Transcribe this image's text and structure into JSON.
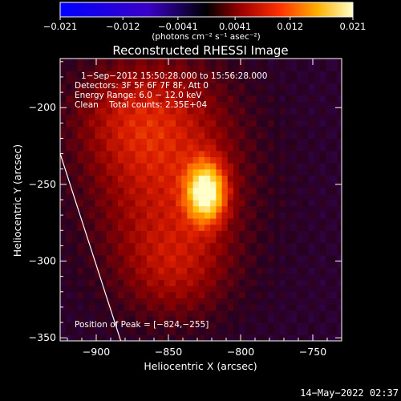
{
  "chart_data": {
    "type": "heatmap",
    "title": "Reconstructed RHESSI Image",
    "xlabel": "Heliocentric X (arcsec)",
    "ylabel": "Heliocentric Y (arcsec)",
    "xlim": [
      -925,
      -730
    ],
    "ylim": [
      -352,
      -168
    ],
    "x_ticks": [
      -900,
      -850,
      -800,
      -750
    ],
    "y_ticks": [
      -350,
      -300,
      -250,
      -200
    ],
    "x_tick_labels": [
      "−900",
      "−850",
      "−800",
      "−750"
    ],
    "y_tick_labels": [
      "−350",
      "−300",
      "−250",
      "−200"
    ],
    "colorbar": {
      "range": [
        -0.021,
        0.021
      ],
      "ticks": [
        -0.021,
        -0.012,
        -0.0041,
        0.0041,
        0.012,
        0.021
      ],
      "tick_labels": [
        "−0.021",
        "−0.012",
        "−0.0041",
        "0.0041",
        "0.012",
        "0.021"
      ],
      "unit_label": "(photons cm⁻² s⁻¹ asec⁻²)"
    },
    "peak": {
      "x": -824,
      "y": -255,
      "value": 0.021
    },
    "annotations": [
      "1−Sep−2012 15:50:28.000 to 15:56:28.000",
      "Detectors: 3F 5F 6F 7F 8F, Att 0",
      "Energy Range: 6.0 − 12.0 keV",
      "Clean    Total counts: 2.35E+04"
    ],
    "peak_label": "Position of Peak = [−824,−255]",
    "limb_line": [
      [
        -925,
        -230
      ],
      [
        -883,
        -352
      ]
    ]
  },
  "footer": {
    "timestamp": "14−May−2022 02:37"
  },
  "colors": {
    "background": "#000000",
    "text": "#ffffff"
  }
}
